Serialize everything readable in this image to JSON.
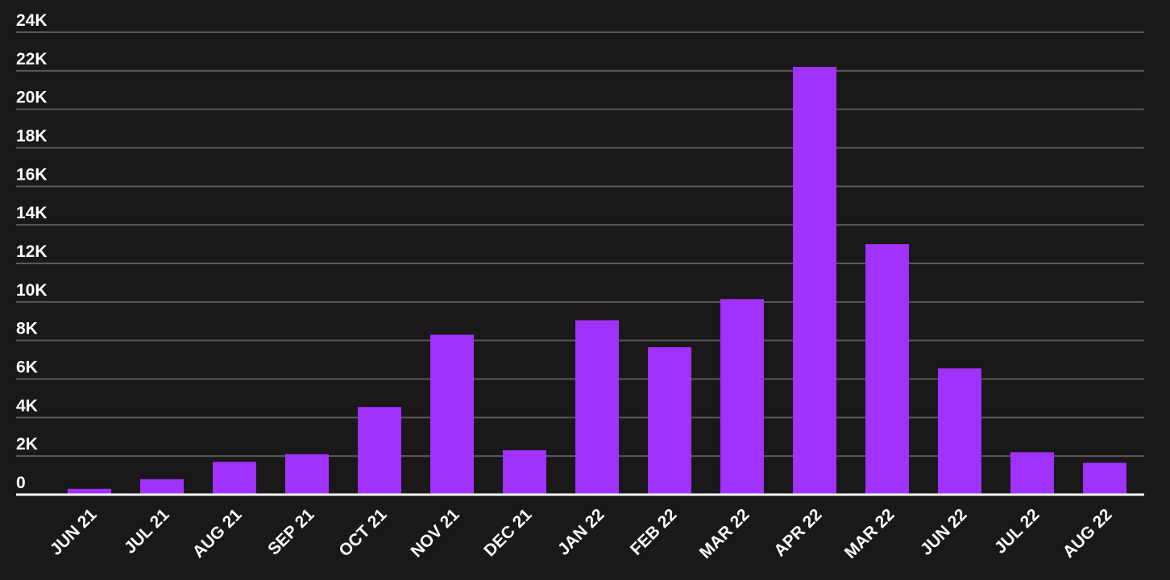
{
  "chart_data": {
    "type": "bar",
    "categories": [
      "JUN 21",
      "JUL 21",
      "AUG 21",
      "SEP 21",
      "OCT 21",
      "NOV 21",
      "DEC 21",
      "JAN 22",
      "FEB 22",
      "MAR 22",
      "APR 22",
      "MAR 22",
      "JUN 22",
      "JUL 22",
      "AUG 22"
    ],
    "values": [
      300,
      800,
      1700,
      2100,
      4550,
      8300,
      2300,
      9050,
      7650,
      10150,
      22200,
      13000,
      6550,
      2200,
      1650
    ],
    "color": "#a131fc",
    "ylim": [
      0,
      24000
    ],
    "yticks": [
      0,
      {
        "value": 2000,
        "label": "2K"
      },
      {
        "value": 4000,
        "label": "4K"
      },
      {
        "value": 6000,
        "label": "6K"
      },
      {
        "value": 8000,
        "label": "8K"
      },
      {
        "value": 10000,
        "label": "10K"
      },
      {
        "value": 12000,
        "label": "12K"
      },
      {
        "value": 14000,
        "label": "14K"
      },
      {
        "value": 16000,
        "label": "16K"
      },
      {
        "value": 18000,
        "label": "18K"
      },
      {
        "value": 20000,
        "label": "20K"
      },
      {
        "value": 22000,
        "label": "22K"
      },
      {
        "value": 24000,
        "label": "24K"
      }
    ],
    "grid": true
  }
}
